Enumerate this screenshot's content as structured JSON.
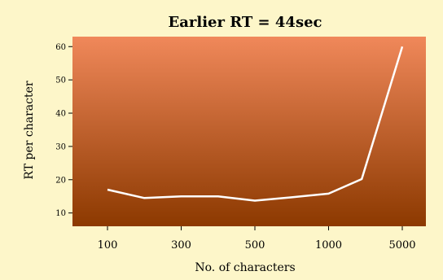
{
  "chart_data": {
    "type": "line",
    "title": "Earlier RT = 44sec",
    "xlabel": "No. of characters",
    "ylabel": "RT per character",
    "categories": [
      "100",
      "300",
      "500",
      "1000",
      "5000"
    ],
    "x_positions": [
      0,
      1,
      2,
      3,
      4
    ],
    "x_ticks": [
      0,
      1,
      2,
      3,
      4
    ],
    "series": [
      {
        "x": [
          0,
          0.5,
          1,
          1.5,
          2,
          2.5,
          3,
          3.45,
          4
        ],
        "y": [
          17,
          14.5,
          15,
          15,
          13.7,
          14.7,
          15.8,
          20.2,
          60
        ]
      }
    ],
    "ylim": [
      6,
      63
    ],
    "y_ticks": [
      10,
      20,
      30,
      40,
      50,
      60
    ],
    "grid": false,
    "background_gradient": [
      "#f0885a",
      "#8c3900"
    ],
    "line_color": "#ffffff"
  }
}
